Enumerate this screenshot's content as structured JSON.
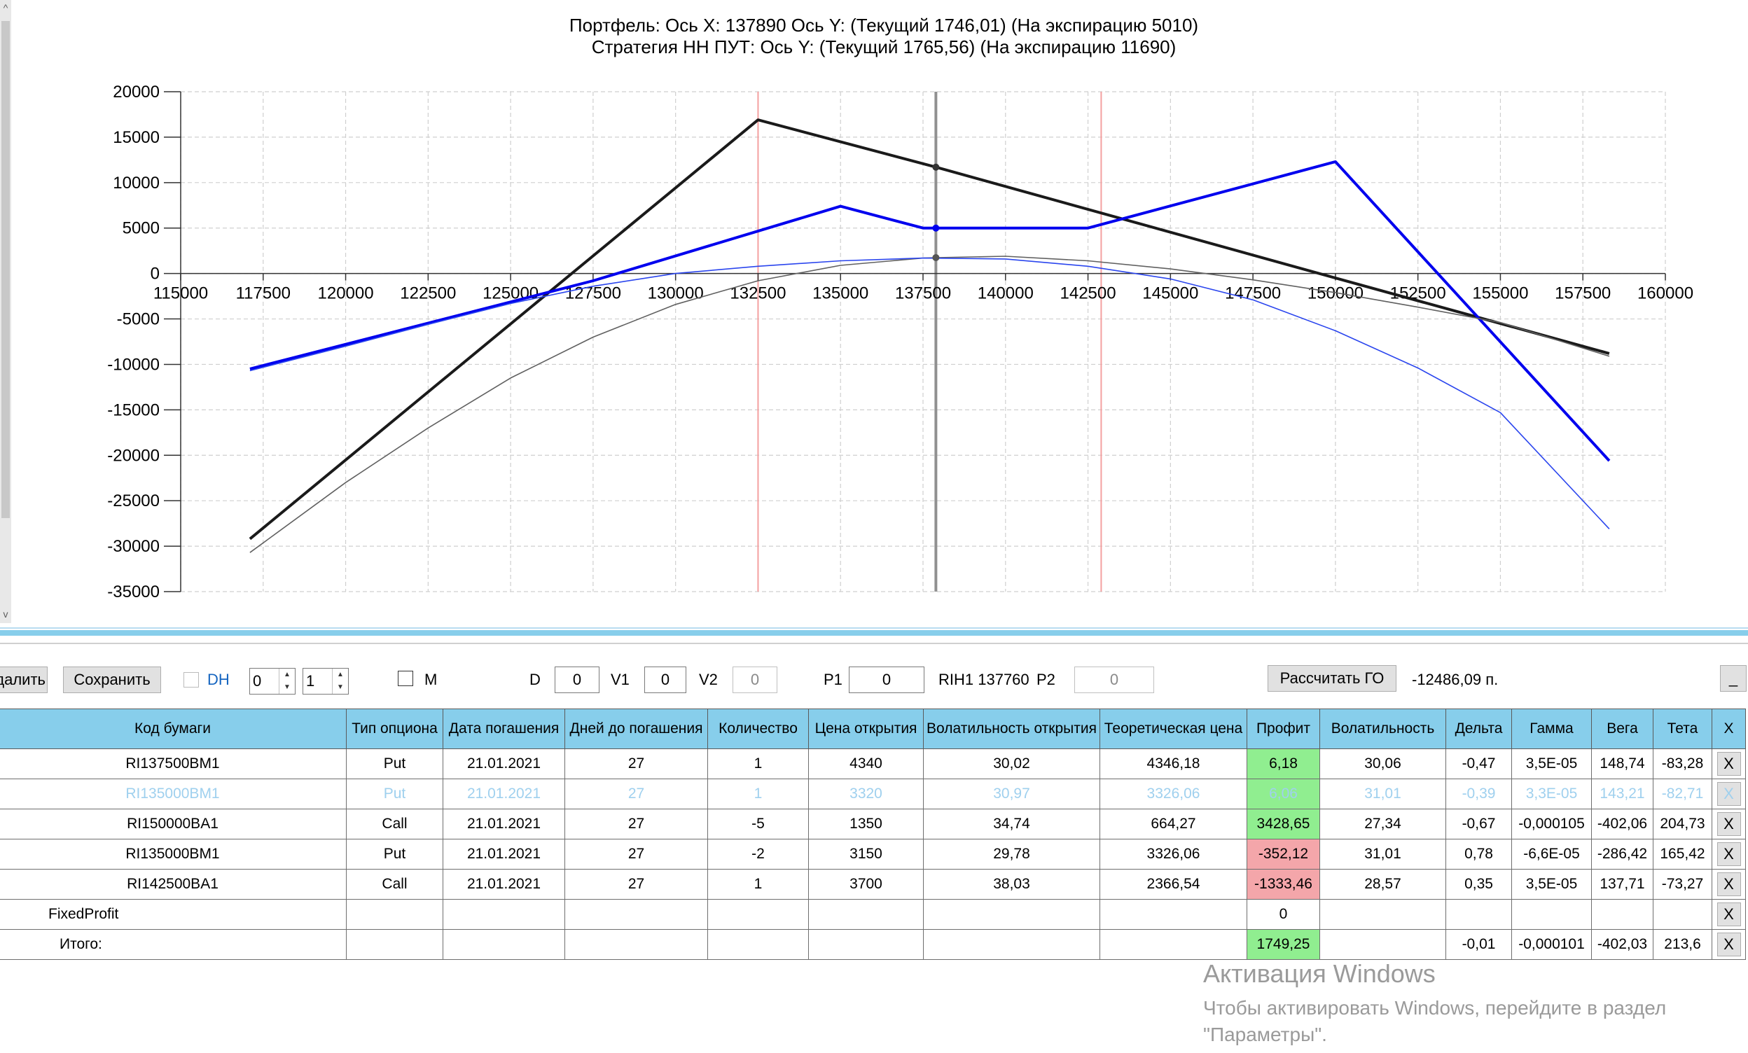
{
  "chart": {
    "title_line1": "Портфель: Ось X: 137890 Ось Y:  (Текущий 1746,01)  (На экспирацию 5010)",
    "title_line2": "Стратегия НН ПУТ:  Ось Y:  (Текущий 1765,56)  (На экспирацию 11690)"
  },
  "chart_data": {
    "type": "line",
    "title": "Портфель: Ось X: 137890 Ось Y:  (Текущий 1746,01)  (На экспирацию 5010) / Стратегия НН ПУТ:  Ось Y:  (Текущий 1765,56)  (На экспирацию 11690)",
    "xlim": [
      115000,
      160000
    ],
    "ylim": [
      -35000,
      20000
    ],
    "x_ticks": [
      115000,
      117500,
      120000,
      122500,
      125000,
      127500,
      130000,
      132500,
      135000,
      137500,
      140000,
      142500,
      145000,
      147500,
      150000,
      152500,
      155000,
      157500,
      160000
    ],
    "y_ticks": [
      20000,
      15000,
      10000,
      5000,
      0,
      -5000,
      -10000,
      -15000,
      -20000,
      -25000,
      -30000,
      -35000
    ],
    "grid": true,
    "vertical_lines": [
      {
        "x": 132500,
        "color": "#f4a0a0"
      },
      {
        "x": 137890,
        "color": "#909090"
      },
      {
        "x": 142900,
        "color": "#f4a0a0"
      }
    ],
    "series": [
      {
        "color": "#1a1a1a",
        "style": "expiration",
        "points": [
          [
            117100,
            -29200
          ],
          [
            132500,
            16900
          ],
          [
            137890,
            11700
          ],
          [
            150000,
            -500
          ],
          [
            158300,
            -8800
          ]
        ]
      },
      {
        "color": "#0000ee",
        "style": "expiration",
        "points": [
          [
            117100,
            -10500
          ],
          [
            127500,
            -800
          ],
          [
            135000,
            7400
          ],
          [
            137500,
            5000
          ],
          [
            142500,
            5000
          ],
          [
            150000,
            12300
          ],
          [
            158300,
            -20600
          ]
        ]
      },
      {
        "color": "#606060",
        "style": "current",
        "points": [
          [
            117100,
            -30700
          ],
          [
            120000,
            -23000
          ],
          [
            122500,
            -17000
          ],
          [
            125000,
            -11500
          ],
          [
            127500,
            -7000
          ],
          [
            130000,
            -3400
          ],
          [
            132500,
            -800
          ],
          [
            135000,
            900
          ],
          [
            137500,
            1700
          ],
          [
            137890,
            1746
          ],
          [
            140000,
            1900
          ],
          [
            142500,
            1400
          ],
          [
            145000,
            500
          ],
          [
            147500,
            -700
          ],
          [
            150000,
            -2100
          ],
          [
            152500,
            -3700
          ],
          [
            155000,
            -5400
          ],
          [
            158300,
            -9100
          ]
        ]
      },
      {
        "color": "#2a45ee",
        "style": "current",
        "points": [
          [
            117100,
            -10700
          ],
          [
            120000,
            -8000
          ],
          [
            122500,
            -5600
          ],
          [
            125000,
            -3300
          ],
          [
            127500,
            -1400
          ],
          [
            130000,
            0
          ],
          [
            132500,
            800
          ],
          [
            135000,
            1400
          ],
          [
            137500,
            1700
          ],
          [
            140000,
            1600
          ],
          [
            142500,
            800
          ],
          [
            145000,
            -600
          ],
          [
            147500,
            -2900
          ],
          [
            150000,
            -6300
          ],
          [
            152500,
            -10400
          ],
          [
            155000,
            -15300
          ],
          [
            158300,
            -28100
          ]
        ]
      }
    ],
    "markers": [
      {
        "x": 137890,
        "y": 11700,
        "color": "#333333"
      },
      {
        "x": 137890,
        "y": 5000,
        "color": "#0000ee"
      },
      {
        "x": 137890,
        "y": 1746,
        "color": "#555555"
      }
    ]
  },
  "toolbar": {
    "delete_label": "Удалить",
    "save_label": "Сохранить",
    "dh_label": "DH",
    "spin1_value": "0",
    "spin2_value": "1",
    "m_label": "M",
    "d_label": "D",
    "d_value": "0",
    "v1_label": "V1",
    "v1_value": "0",
    "v2_label": "V2",
    "v2_value": "0",
    "p1_label": "P1",
    "p1_value": "0",
    "instrument": "RIH1 137760",
    "p2_label": "P2",
    "p2_value": "0",
    "calc_go_label": "Рассчитать ГО",
    "go_value": "-12486,09 п.",
    "minimize_label": "_"
  },
  "table": {
    "headers": [
      "Код бумаги",
      "Тип опциона",
      "Дата погашения",
      "Дней до погашения",
      "Количество",
      "Цена открытия",
      "Волатильность открытия",
      "Теоретическая цена",
      "Профит",
      "Волатильность",
      "Дельта",
      "Гамма",
      "Вега",
      "Тета",
      "X"
    ],
    "rows": [
      {
        "style": "normal",
        "profit_color": "green",
        "cells": [
          "RI137500BM1",
          "Put",
          "21.01.2021",
          "27",
          "1",
          "4340",
          "30,02",
          "4346,18",
          "6,18",
          "30,06",
          "-0,47",
          "3,5E-05",
          "148,74",
          "-83,28",
          "X"
        ]
      },
      {
        "style": "faded",
        "profit_color": "green",
        "cells": [
          "RI135000BM1",
          "Put",
          "21.01.2021",
          "27",
          "1",
          "3320",
          "30,97",
          "3326,06",
          "6,06",
          "31,01",
          "-0,39",
          "3,3E-05",
          "143,21",
          "-82,71",
          "X"
        ]
      },
      {
        "style": "normal",
        "profit_color": "green",
        "cells": [
          "RI150000BA1",
          "Call",
          "21.01.2021",
          "27",
          "-5",
          "1350",
          "34,74",
          "664,27",
          "3428,65",
          "27,34",
          "-0,67",
          "-0,000105",
          "-402,06",
          "204,73",
          "X"
        ]
      },
      {
        "style": "normal",
        "profit_color": "pink",
        "cells": [
          "RI135000BM1",
          "Put",
          "21.01.2021",
          "27",
          "-2",
          "3150",
          "29,78",
          "3326,06",
          "-352,12",
          "31,01",
          "0,78",
          "-6,6E-05",
          "-286,42",
          "165,42",
          "X"
        ]
      },
      {
        "style": "normal",
        "profit_color": "pink",
        "cells": [
          "RI142500BA1",
          "Call",
          "21.01.2021",
          "27",
          "1",
          "3700",
          "38,03",
          "2366,54",
          "-1333,46",
          "28,57",
          "0,35",
          "3,5E-05",
          "137,71",
          "-73,27",
          "X"
        ]
      },
      {
        "style": "normal",
        "profit_color": "none",
        "cells": [
          "FixedProfit",
          "",
          "",
          "",
          "",
          "",
          "",
          "",
          "0",
          "",
          "",
          "",
          "",
          "",
          "X"
        ]
      },
      {
        "style": "normal",
        "profit_color": "green",
        "cells": [
          "Итого:",
          "",
          "",
          "",
          "",
          "",
          "",
          "",
          "1749,25",
          "",
          "-0,01",
          "-0,000101",
          "-402,03",
          "213,6",
          "X"
        ]
      }
    ]
  },
  "watermark": {
    "line1": "Активация Windows",
    "line2": "Чтобы активировать Windows, перейдите в раздел",
    "line3": "\"Параметры\"."
  }
}
